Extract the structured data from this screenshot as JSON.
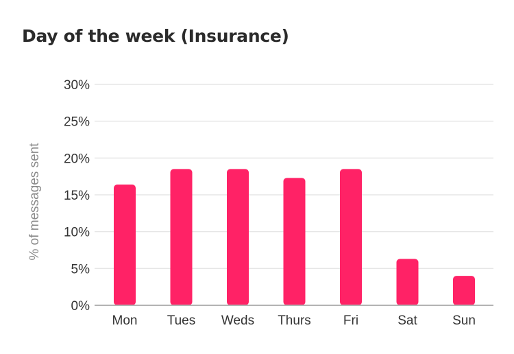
{
  "chart_data": {
    "type": "bar",
    "title": "Day of the week (Insurance)",
    "xlabel": "",
    "ylabel": "% of messages sent",
    "categories": [
      "Mon",
      "Tues",
      "Weds",
      "Thurs",
      "Fri",
      "Sat",
      "Sun"
    ],
    "values": [
      16.4,
      18.5,
      18.5,
      17.3,
      18.5,
      6.3,
      4.0
    ],
    "ylim": [
      0,
      30
    ],
    "yticks": [
      0,
      5,
      10,
      15,
      20,
      25,
      30
    ],
    "ytick_labels": [
      "0%",
      "5%",
      "10%",
      "15%",
      "20%",
      "25%",
      "30%"
    ],
    "value_unit": "%",
    "grid": true,
    "legend": "none",
    "bar_color": "#ff2266",
    "grid_color": "#e6e6e6",
    "axis_color": "#b3b3b3"
  }
}
